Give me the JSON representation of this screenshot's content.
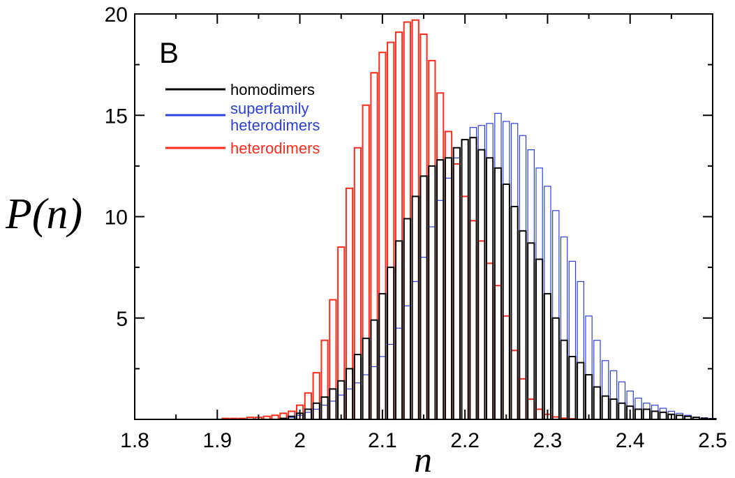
{
  "chart_data": {
    "type": "bar",
    "panel_label": "B",
    "xlabel": "n",
    "ylabel": "P(n)",
    "xlim": [
      1.8,
      2.5
    ],
    "ylim": [
      0,
      20
    ],
    "xticks": [
      "1.8",
      "1.9",
      "2",
      "2.1",
      "2.2",
      "2.3",
      "2.4",
      "2.5"
    ],
    "yticks": [
      "5",
      "10",
      "15",
      "20"
    ],
    "bin_width": 0.01,
    "grid": false,
    "legend_position": "top-left",
    "series": [
      {
        "name": "heterodimers",
        "color": "#ff2a1a",
        "x": [
          1.91,
          1.92,
          1.93,
          1.94,
          1.95,
          1.96,
          1.97,
          1.98,
          1.99,
          2.0,
          2.01,
          2.02,
          2.03,
          2.04,
          2.05,
          2.06,
          2.07,
          2.08,
          2.09,
          2.1,
          2.11,
          2.12,
          2.13,
          2.14,
          2.15,
          2.16,
          2.17,
          2.18,
          2.19,
          2.2,
          2.21,
          2.22,
          2.23,
          2.24,
          2.25,
          2.26,
          2.27,
          2.28,
          2.29,
          2.3,
          2.31,
          2.32,
          2.33
        ],
        "values": [
          0.05,
          0.05,
          0.05,
          0.1,
          0.1,
          0.15,
          0.2,
          0.3,
          0.4,
          0.7,
          1.3,
          2.3,
          3.9,
          5.9,
          8.5,
          11.4,
          13.4,
          15.5,
          17.1,
          18.1,
          18.6,
          19.1,
          19.6,
          19.7,
          19.0,
          17.7,
          16.1,
          14.2,
          12.6,
          11.0,
          9.8,
          8.8,
          7.7,
          6.6,
          5.1,
          3.4,
          2.0,
          1.0,
          0.5,
          0.25,
          0.12,
          0.06,
          0.03
        ]
      },
      {
        "name": "superfamily heterodimers",
        "color": "#2a3fe0",
        "x": [
          1.98,
          1.99,
          2.0,
          2.01,
          2.02,
          2.03,
          2.04,
          2.05,
          2.06,
          2.07,
          2.08,
          2.09,
          2.1,
          2.11,
          2.12,
          2.13,
          2.14,
          2.15,
          2.16,
          2.17,
          2.18,
          2.19,
          2.2,
          2.21,
          2.22,
          2.23,
          2.24,
          2.25,
          2.26,
          2.27,
          2.28,
          2.29,
          2.3,
          2.31,
          2.32,
          2.33,
          2.34,
          2.35,
          2.36,
          2.37,
          2.38,
          2.39,
          2.4,
          2.41,
          2.42,
          2.43,
          2.44,
          2.45,
          2.46,
          2.47,
          2.48,
          2.49,
          2.5
        ],
        "values": [
          0.05,
          0.1,
          0.2,
          0.35,
          0.5,
          0.7,
          0.9,
          1.2,
          1.5,
          1.8,
          2.2,
          2.6,
          3.1,
          3.7,
          4.5,
          5.6,
          6.8,
          8.0,
          9.5,
          10.8,
          11.9,
          12.9,
          13.8,
          14.4,
          14.5,
          14.6,
          15.1,
          14.7,
          14.6,
          14.0,
          13.3,
          12.4,
          11.5,
          10.3,
          9.0,
          7.8,
          6.8,
          5.1,
          3.9,
          2.9,
          2.4,
          1.85,
          1.4,
          1.05,
          0.8,
          0.7,
          0.55,
          0.4,
          0.3,
          0.2,
          0.1,
          0.08,
          0.05
        ]
      },
      {
        "name": "homodimers",
        "color": "#000000",
        "x": [
          1.98,
          1.99,
          2.0,
          2.01,
          2.02,
          2.03,
          2.04,
          2.05,
          2.06,
          2.07,
          2.08,
          2.09,
          2.1,
          2.11,
          2.12,
          2.13,
          2.14,
          2.15,
          2.16,
          2.17,
          2.18,
          2.19,
          2.2,
          2.21,
          2.22,
          2.23,
          2.24,
          2.25,
          2.26,
          2.27,
          2.28,
          2.29,
          2.3,
          2.31,
          2.32,
          2.33,
          2.34,
          2.35,
          2.36,
          2.37,
          2.38,
          2.39,
          2.4,
          2.41,
          2.42,
          2.43,
          2.44,
          2.45,
          2.46,
          2.47,
          2.48,
          2.49,
          2.5
        ],
        "values": [
          0.05,
          0.15,
          0.3,
          0.5,
          0.8,
          1.1,
          1.5,
          1.9,
          2.5,
          3.2,
          4.0,
          4.9,
          6.2,
          7.5,
          8.8,
          9.9,
          11.0,
          12.0,
          12.5,
          12.8,
          12.9,
          13.4,
          13.8,
          13.9,
          13.3,
          12.9,
          12.4,
          11.6,
          10.5,
          9.3,
          8.7,
          7.9,
          6.2,
          5.0,
          3.9,
          3.1,
          2.8,
          2.2,
          1.6,
          1.15,
          1.0,
          0.8,
          0.65,
          0.5,
          0.5,
          0.4,
          0.35,
          0.25,
          0.2,
          0.15,
          0.1,
          0.05,
          0.03
        ]
      }
    ]
  }
}
